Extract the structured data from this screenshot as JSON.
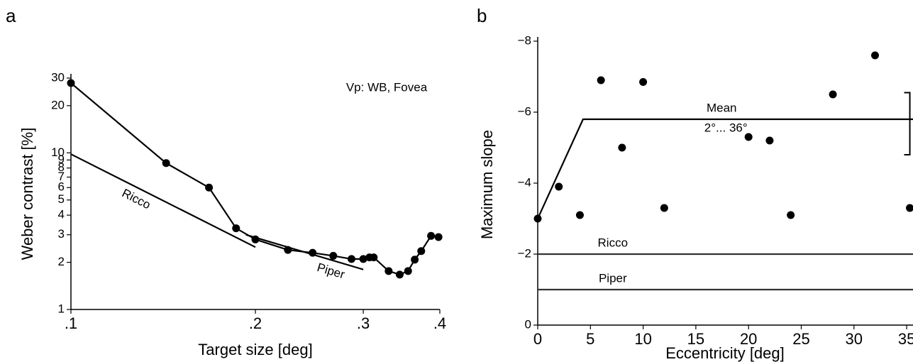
{
  "chart_data": [
    {
      "type": "line",
      "panel_label": "a",
      "xlabel": "Target size [deg]",
      "ylabel": "Weber contrast [%]",
      "annotation": "Vp: WB, Fovea",
      "xscale": "log",
      "yscale": "log",
      "xlim": [
        0.1,
        0.4
      ],
      "ylim": [
        1,
        30
      ],
      "xticks": [
        {
          "value": 0.1,
          "label": ".1"
        },
        {
          "value": 0.2,
          "label": ".2"
        },
        {
          "value": 0.3,
          "label": ".3"
        },
        {
          "value": 0.4,
          "label": ".4"
        }
      ],
      "yticks": [
        1,
        2,
        3,
        4,
        5,
        6,
        7,
        8,
        9,
        10,
        20,
        30
      ],
      "series": [
        {
          "mode": "lines+markers",
          "color": "#000000",
          "x": [
            0.1,
            0.143,
            0.168,
            0.186,
            0.2,
            0.226,
            0.248,
            0.268,
            0.287,
            0.3,
            0.307,
            0.312,
            0.33,
            0.344,
            0.355,
            0.364,
            0.373,
            0.387,
            0.398
          ],
          "values": [
            27.9,
            8.6,
            6,
            3.3,
            2.8,
            2.4,
            2.3,
            2.2,
            2.1,
            2.1,
            2.15,
            2.15,
            1.76,
            1.67,
            1.76,
            2.08,
            2.36,
            2.95,
            2.9
          ]
        },
        {
          "name": "Ricco",
          "mode": "lines",
          "color": "#000000",
          "x": [
            0.1,
            0.2
          ],
          "values": [
            9.8,
            2.5
          ]
        },
        {
          "name": "Piper",
          "mode": "lines",
          "color": "#000000",
          "x": [
            0.193,
            0.3
          ],
          "values": [
            3.0,
            1.8
          ]
        }
      ]
    },
    {
      "type": "scatter",
      "panel_label": "b",
      "xlabel": "Eccentricity [deg]",
      "ylabel": "Maximum slope",
      "xlim": [
        0,
        35.6
      ],
      "ylim": [
        0,
        -8
      ],
      "xticks": [
        0,
        5,
        10,
        15,
        20,
        25,
        30,
        35
      ],
      "yticks": [
        0,
        {
          "value": -2,
          "label": "−2"
        },
        {
          "value": -4,
          "label": "−4"
        },
        {
          "value": -6,
          "label": "−6"
        },
        {
          "value": -8,
          "label": "−8"
        }
      ],
      "series": [
        {
          "mode": "markers",
          "color": "#000000",
          "x": [
            0,
            2,
            4,
            6,
            8,
            10,
            12,
            20,
            22,
            24,
            28,
            32,
            35.3
          ],
          "values": [
            -3.0,
            -3.9,
            -3.1,
            -6.9,
            -5.0,
            -6.85,
            -3.3,
            -5.3,
            -5.2,
            -3.1,
            -6.5,
            -7.6,
            -3.3
          ]
        },
        {
          "name": "Mean",
          "note": "2°... 36°",
          "mode": "lines",
          "color": "#000000",
          "x": [
            0,
            4.3,
            35.6
          ],
          "values": [
            -3.0,
            -5.8,
            -5.8
          ]
        },
        {
          "name": "Ricco",
          "mode": "lines",
          "color": "#333333",
          "x": [
            0,
            35.6
          ],
          "values": [
            -2,
            -2
          ]
        },
        {
          "name": "Piper",
          "mode": "lines",
          "color": "#333333",
          "x": [
            0,
            35.6
          ],
          "values": [
            -1,
            -1
          ]
        }
      ],
      "errorbar": {
        "x": 35.3,
        "values": [
          -4.8,
          -6.55
        ]
      }
    }
  ]
}
